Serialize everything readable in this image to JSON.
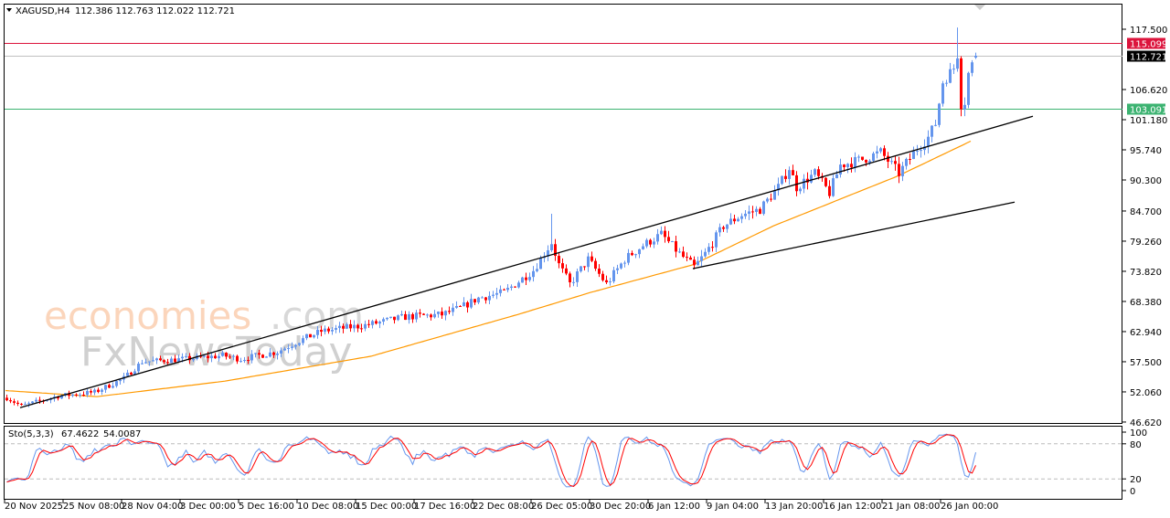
{
  "header": {
    "symbol": "XAGUSD,H4",
    "ohlc": "112.386 112.763 112.022 112.721"
  },
  "watermark": {
    "line1": "economies",
    "line1b": ".com",
    "line2": "FxNewsToday"
  },
  "colors": {
    "bull": "#6495ED",
    "bear": "#FF0000",
    "ma": "#FF9900",
    "level_high": "#DC143C",
    "level_bid": "#C0C0C0",
    "level_low": "#3CB371",
    "stoch_main": "#6495ED",
    "stoch_signal": "#FF0000"
  },
  "chart_data": {
    "type": "candlestick",
    "timeframe": "H4",
    "ylim": [
      46.62,
      118.5
    ],
    "y_ticks": [
      "117.500",
      "106.620",
      "101.180",
      "95.740",
      "90.300",
      "84.700",
      "79.260",
      "73.820",
      "68.380",
      "62.940",
      "57.500",
      "52.060",
      "46.620"
    ],
    "x_labels": [
      "20 Nov 2025",
      "25 Nov 08:00",
      "28 Nov 04:00",
      "3 Dec 00:00",
      "5 Dec 16:00",
      "10 Dec 08:00",
      "15 Dec 00:00",
      "17 Dec 16:00",
      "22 Dec 08:00",
      "26 Dec 05:00",
      "30 Dec 20:00",
      "6 Jan 12:00",
      "9 Jan 04:00",
      "13 Jan 20:00",
      "16 Jan 12:00",
      "21 Jan 08:00",
      "26 Jan 00:00"
    ],
    "close_path": [
      [
        0,
        51
      ],
      [
        4,
        49.5
      ],
      [
        14,
        51.3
      ],
      [
        24,
        52
      ],
      [
        32,
        54.5
      ],
      [
        37,
        57.5
      ],
      [
        49,
        58
      ],
      [
        59,
        58.6
      ],
      [
        64,
        58
      ],
      [
        74,
        59.3
      ],
      [
        79,
        61
      ],
      [
        86,
        63
      ],
      [
        99,
        64.2
      ],
      [
        109,
        65.6
      ],
      [
        119,
        66
      ],
      [
        124,
        67.2
      ],
      [
        129,
        69
      ],
      [
        136,
        70
      ],
      [
        144,
        74
      ],
      [
        149,
        79
      ],
      [
        151,
        75
      ],
      [
        154,
        71.5
      ],
      [
        159,
        76
      ],
      [
        164,
        71.5
      ],
      [
        169,
        76
      ],
      [
        174,
        78.5
      ],
      [
        179,
        80.5
      ],
      [
        184,
        77
      ],
      [
        188,
        74.5
      ],
      [
        191,
        77
      ],
      [
        196,
        82
      ],
      [
        201,
        84
      ],
      [
        206,
        85
      ],
      [
        211,
        89
      ],
      [
        214,
        92.5
      ],
      [
        216,
        89
      ],
      [
        221,
        91.5
      ],
      [
        225,
        88
      ],
      [
        228,
        93
      ],
      [
        234,
        94
      ],
      [
        239,
        95.3
      ],
      [
        244,
        91.5
      ],
      [
        249,
        96
      ],
      [
        252,
        98
      ],
      [
        254,
        100.5
      ],
      [
        256,
        108
      ],
      [
        259,
        110.5
      ],
      [
        260,
        113
      ],
      [
        261,
        104
      ],
      [
        262,
        104.5
      ],
      [
        263,
        109.5
      ],
      [
        265,
        112.721
      ]
    ],
    "spikes": [
      {
        "bar": 149,
        "high": 84.2
      },
      {
        "bar": 260,
        "high": 117.8
      },
      {
        "bar": 261,
        "low": 101.8
      }
    ],
    "levels": [
      {
        "name": "high",
        "value": 115.099,
        "label": "115.099"
      },
      {
        "name": "bid",
        "value": 112.721,
        "label": "112.721"
      },
      {
        "name": "low",
        "value": 103.091,
        "label": "103.091"
      }
    ],
    "trendlines": [
      {
        "from": [
          4,
          49.2
        ],
        "to": [
          281,
          101.8
        ]
      },
      {
        "from": [
          188,
          74.3
        ],
        "to": [
          276,
          86.3
        ]
      }
    ],
    "moving_average": [
      [
        0,
        52.3
      ],
      [
        25,
        51.2
      ],
      [
        60,
        54
      ],
      [
        100,
        58.5
      ],
      [
        140,
        66
      ],
      [
        160,
        70
      ],
      [
        188,
        75
      ],
      [
        210,
        82
      ],
      [
        244,
        91
      ],
      [
        264,
        97.3
      ]
    ],
    "stochastic": {
      "label": "Sto(5,3,3)",
      "main": "67.4622",
      "signal": "54.0087",
      "levels": [
        "100",
        "80",
        "20",
        "0"
      ]
    }
  }
}
